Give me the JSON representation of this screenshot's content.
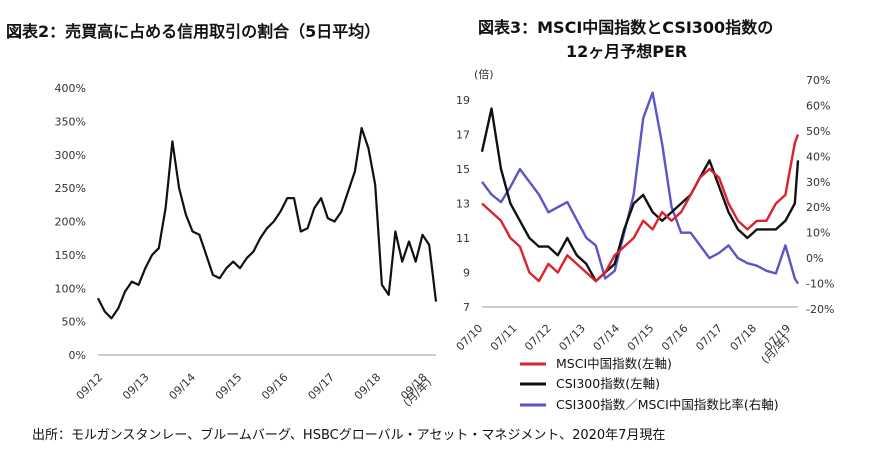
{
  "titles": {
    "fig2": "図表2：売買高に占める信用取引の割合（5日平均）",
    "fig3_line1": "図表3：MSCI中国指数とCSI300指数の",
    "fig3_line2": "12ヶ月予想PER"
  },
  "source": "出所：モルガンスタンレー、ブルームバーグ、HSBCグローバル・アセット・マネジメント、2020年7月現在",
  "colors": {
    "black": "#111111",
    "red": "#d9232e",
    "blue": "#5a55c8"
  },
  "chart_data": [
    {
      "type": "line",
      "title": "図表2：売買高に占める信用取引の割合（5日平均）",
      "xlabel": "(月/年)",
      "ylabel": "",
      "ylim": [
        0,
        400
      ],
      "yticks": [
        "0%",
        "50%",
        "100%",
        "150%",
        "200%",
        "250%",
        "300%",
        "350%",
        "400%"
      ],
      "xtick_labels": [
        "09/12",
        "09/13",
        "09/14",
        "09/15",
        "09/16",
        "09/17",
        "09/18",
        "09/18"
      ],
      "series": [
        {
          "name": "信用取引の割合",
          "color": "#111111",
          "x": [
            0,
            0.02,
            0.04,
            0.06,
            0.08,
            0.1,
            0.12,
            0.14,
            0.16,
            0.18,
            0.2,
            0.22,
            0.24,
            0.26,
            0.28,
            0.3,
            0.32,
            0.34,
            0.36,
            0.38,
            0.4,
            0.42,
            0.44,
            0.46,
            0.48,
            0.5,
            0.52,
            0.54,
            0.56,
            0.58,
            0.6,
            0.62,
            0.64,
            0.66,
            0.68,
            0.7,
            0.72,
            0.74,
            0.76,
            0.78,
            0.8,
            0.82,
            0.84,
            0.86,
            0.88,
            0.9,
            0.92,
            0.94,
            0.96,
            0.98,
            1.0
          ],
          "values": [
            85,
            65,
            55,
            70,
            95,
            110,
            105,
            130,
            150,
            160,
            220,
            320,
            250,
            210,
            185,
            180,
            150,
            120,
            115,
            130,
            140,
            130,
            145,
            155,
            175,
            190,
            200,
            215,
            235,
            235,
            185,
            190,
            220,
            235,
            205,
            200,
            215,
            245,
            275,
            340,
            310,
            255,
            105,
            90,
            185,
            140,
            170,
            140,
            180,
            165,
            80
          ]
        }
      ]
    },
    {
      "type": "line",
      "title": "図表3：MSCI中国指数とCSI300指数の12ヶ月予想PER",
      "xlabel": "(月/年)",
      "ylabel": "(倍)",
      "ylim": [
        7,
        19
      ],
      "ylim_right": [
        -20,
        70
      ],
      "yticks_left": [
        "7",
        "9",
        "11",
        "13",
        "15",
        "17",
        "19"
      ],
      "yticks_right": [
        "-20%",
        "-10%",
        "0%",
        "10%",
        "20%",
        "30%",
        "40%",
        "50%",
        "60%",
        "70%"
      ],
      "xtick_labels": [
        "07/10",
        "07/11",
        "07/12",
        "07/13",
        "07/14",
        "07/15",
        "07/16",
        "07/17",
        "07/18",
        "07/19"
      ],
      "series": [
        {
          "name": "MSCI中国指数(左軸)",
          "axis": "left",
          "color": "#d9232e",
          "x": [
            0,
            0.03,
            0.06,
            0.09,
            0.12,
            0.15,
            0.18,
            0.21,
            0.24,
            0.27,
            0.3,
            0.33,
            0.36,
            0.39,
            0.42,
            0.45,
            0.48,
            0.51,
            0.54,
            0.57,
            0.6,
            0.63,
            0.66,
            0.69,
            0.72,
            0.75,
            0.78,
            0.81,
            0.84,
            0.87,
            0.9,
            0.93,
            0.96,
            0.99,
            1.0
          ],
          "values": [
            13.0,
            12.5,
            12.0,
            11.0,
            10.5,
            9.0,
            8.5,
            9.5,
            9.0,
            10.0,
            9.5,
            9.0,
            8.5,
            9.0,
            10.0,
            10.5,
            11.0,
            12.0,
            11.5,
            12.5,
            12.0,
            12.5,
            13.5,
            14.5,
            15.0,
            14.5,
            13.0,
            12.0,
            11.5,
            12.0,
            12.0,
            13.0,
            13.5,
            16.5,
            17.0
          ]
        },
        {
          "name": "CSI300指数(左軸)",
          "axis": "left",
          "color": "#111111",
          "x": [
            0,
            0.03,
            0.06,
            0.09,
            0.12,
            0.15,
            0.18,
            0.21,
            0.24,
            0.27,
            0.3,
            0.33,
            0.36,
            0.39,
            0.42,
            0.45,
            0.48,
            0.51,
            0.54,
            0.57,
            0.6,
            0.63,
            0.66,
            0.69,
            0.72,
            0.75,
            0.78,
            0.81,
            0.84,
            0.87,
            0.9,
            0.93,
            0.96,
            0.99,
            1.0
          ],
          "values": [
            16.0,
            18.5,
            15.0,
            13.0,
            12.0,
            11.0,
            10.5,
            10.5,
            10.0,
            11.0,
            10.0,
            9.5,
            8.5,
            9.0,
            9.5,
            11.5,
            13.0,
            13.5,
            12.5,
            12.0,
            12.5,
            13.0,
            13.5,
            14.5,
            15.5,
            14.0,
            12.5,
            11.5,
            11.0,
            11.5,
            11.5,
            11.5,
            12.0,
            13.0,
            15.5
          ]
        },
        {
          "name": "CSI300指数／MSCI中国指数比率(右軸)",
          "axis": "right",
          "color": "#5a55c8",
          "x": [
            0,
            0.03,
            0.06,
            0.09,
            0.12,
            0.15,
            0.18,
            0.21,
            0.24,
            0.27,
            0.3,
            0.33,
            0.36,
            0.39,
            0.42,
            0.45,
            0.48,
            0.51,
            0.54,
            0.57,
            0.6,
            0.63,
            0.66,
            0.69,
            0.72,
            0.75,
            0.78,
            0.81,
            0.84,
            0.87,
            0.9,
            0.93,
            0.96,
            0.99,
            1.0
          ],
          "values": [
            30,
            25,
            22,
            28,
            35,
            30,
            25,
            18,
            20,
            22,
            15,
            8,
            5,
            -8,
            -5,
            10,
            25,
            55,
            65,
            45,
            20,
            10,
            10,
            5,
            0,
            2,
            5,
            0,
            -2,
            -3,
            -5,
            -6,
            5,
            -8,
            -10
          ]
        }
      ]
    }
  ]
}
